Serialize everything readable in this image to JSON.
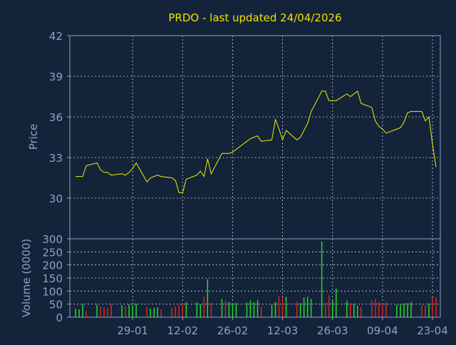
{
  "colors": {
    "background": "#13233a",
    "axis": "#8aa4c8",
    "grid": "#c8d4e6",
    "label": "#8aa4c8",
    "title": "#f0e000",
    "price_line": "#f0f000",
    "vol_up": "#22dd22",
    "vol_down": "#dd2222"
  },
  "chart_data": [
    {
      "type": "line",
      "title": "PRDO - last updated 24/04/2026",
      "ylabel": "Price",
      "ylim": [
        27,
        42
      ],
      "yticks": [
        42,
        39,
        36,
        33,
        30
      ],
      "xlim": [
        "2026-01-13",
        "2026-04-24"
      ],
      "xticks": [
        "29-01",
        "12-02",
        "26-02",
        "12-03",
        "26-03",
        "09-04",
        "23-04"
      ],
      "xtick_dates": [
        "2026-01-29",
        "2026-02-12",
        "2026-02-26",
        "2026-03-12",
        "2026-03-26",
        "2026-04-09",
        "2026-04-23"
      ],
      "grid": true,
      "series": [
        {
          "x": [
            "2026-01-13",
            "2026-01-14",
            "2026-01-15",
            "2026-01-16",
            "2026-01-19",
            "2026-01-20",
            "2026-01-21",
            "2026-01-22",
            "2026-01-23",
            "2026-01-26",
            "2026-01-27",
            "2026-01-28",
            "2026-01-29",
            "2026-01-30",
            "2026-02-02",
            "2026-02-03",
            "2026-02-04",
            "2026-02-05",
            "2026-02-06",
            "2026-02-09",
            "2026-02-10",
            "2026-02-11",
            "2026-02-12",
            "2026-02-13",
            "2026-02-16",
            "2026-02-17",
            "2026-02-18",
            "2026-02-19",
            "2026-02-20",
            "2026-02-23",
            "2026-02-24",
            "2026-02-25",
            "2026-02-26",
            "2026-02-27",
            "2026-03-02",
            "2026-03-03",
            "2026-03-04",
            "2026-03-05",
            "2026-03-06",
            "2026-03-09",
            "2026-03-10",
            "2026-03-11",
            "2026-03-12",
            "2026-03-13",
            "2026-03-16",
            "2026-03-17",
            "2026-03-18",
            "2026-03-19",
            "2026-03-20",
            "2026-03-23",
            "2026-03-24",
            "2026-03-25",
            "2026-03-26",
            "2026-03-27",
            "2026-03-30",
            "2026-03-31",
            "2026-04-01",
            "2026-04-02",
            "2026-04-03",
            "2026-04-06",
            "2026-04-07",
            "2026-04-08",
            "2026-04-09",
            "2026-04-10",
            "2026-04-13",
            "2026-04-14",
            "2026-04-15",
            "2026-04-16",
            "2026-04-17",
            "2026-04-20",
            "2026-04-21",
            "2026-04-22",
            "2026-04-23",
            "2026-04-24"
          ],
          "y": [
            31.6,
            31.6,
            31.6,
            32.4,
            32.6,
            32.1,
            31.9,
            31.9,
            31.7,
            31.8,
            31.7,
            31.9,
            32.2,
            32.6,
            31.2,
            31.5,
            31.6,
            31.7,
            31.6,
            31.5,
            31.3,
            30.4,
            30.4,
            31.4,
            31.7,
            32.0,
            31.6,
            32.9,
            31.8,
            33.3,
            33.3,
            33.3,
            33.4,
            33.6,
            34.2,
            34.4,
            34.5,
            34.6,
            34.2,
            34.3,
            35.8,
            35.1,
            34.3,
            35.0,
            34.3,
            34.5,
            35.0,
            35.5,
            36.4,
            37.9,
            37.9,
            37.2,
            37.2,
            37.2,
            37.7,
            37.5,
            37.7,
            37.9,
            37.0,
            36.7,
            35.7,
            35.3,
            35.1,
            34.8,
            35.1,
            35.2,
            35.6,
            36.3,
            36.4,
            36.4,
            35.7,
            36.0,
            34.0,
            32.3
          ]
        }
      ]
    },
    {
      "type": "bar",
      "ylabel": "Volume (0000)",
      "ylim": [
        0,
        300
      ],
      "yticks": [
        300,
        250,
        200,
        150,
        100,
        50,
        0
      ],
      "x": [
        "2026-01-13",
        "2026-01-14",
        "2026-01-15",
        "2026-01-16",
        "2026-01-19",
        "2026-01-20",
        "2026-01-21",
        "2026-01-22",
        "2026-01-23",
        "2026-01-26",
        "2026-01-27",
        "2026-01-28",
        "2026-01-29",
        "2026-01-30",
        "2026-02-02",
        "2026-02-03",
        "2026-02-04",
        "2026-02-05",
        "2026-02-06",
        "2026-02-09",
        "2026-02-10",
        "2026-02-11",
        "2026-02-12",
        "2026-02-13",
        "2026-02-16",
        "2026-02-17",
        "2026-02-18",
        "2026-02-19",
        "2026-02-20",
        "2026-02-23",
        "2026-02-24",
        "2026-02-25",
        "2026-02-26",
        "2026-02-27",
        "2026-03-02",
        "2026-03-03",
        "2026-03-04",
        "2026-03-05",
        "2026-03-06",
        "2026-03-09",
        "2026-03-10",
        "2026-03-11",
        "2026-03-12",
        "2026-03-13",
        "2026-03-16",
        "2026-03-17",
        "2026-03-18",
        "2026-03-19",
        "2026-03-20",
        "2026-03-23",
        "2026-03-24",
        "2026-03-25",
        "2026-03-26",
        "2026-03-27",
        "2026-03-30",
        "2026-03-31",
        "2026-04-01",
        "2026-04-02",
        "2026-04-03",
        "2026-04-06",
        "2026-04-07",
        "2026-04-08",
        "2026-04-09",
        "2026-04-10",
        "2026-04-13",
        "2026-04-14",
        "2026-04-15",
        "2026-04-16",
        "2026-04-17",
        "2026-04-20",
        "2026-04-21",
        "2026-04-22",
        "2026-04-23",
        "2026-04-24"
      ],
      "values": [
        33,
        30,
        50,
        24,
        48,
        40,
        38,
        36,
        52,
        46,
        42,
        50,
        46,
        52,
        40,
        34,
        36,
        38,
        30,
        36,
        42,
        48,
        54,
        58,
        56,
        50,
        80,
        145,
        54,
        70,
        62,
        58,
        52,
        55,
        56,
        64,
        58,
        66,
        40,
        48,
        58,
        80,
        76,
        78,
        60,
        54,
        76,
        78,
        70,
        290,
        56,
        84,
        64,
        110,
        62,
        54,
        52,
        44,
        40,
        66,
        70,
        58,
        52,
        60,
        48,
        50,
        52,
        54,
        58,
        48,
        46,
        52,
        76,
        76
      ],
      "direction": [
        "up",
        "up",
        "up",
        "down",
        "up",
        "down",
        "down",
        "down",
        "down",
        "up",
        "down",
        "up",
        "up",
        "up",
        "down",
        "up",
        "up",
        "up",
        "down",
        "down",
        "down",
        "down",
        "down",
        "up",
        "up",
        "up",
        "down",
        "up",
        "down",
        "up",
        "down",
        "up",
        "up",
        "up",
        "up",
        "up",
        "up",
        "up",
        "down",
        "up",
        "up",
        "down",
        "down",
        "up",
        "down",
        "up",
        "up",
        "up",
        "up",
        "up",
        "down",
        "down",
        "up",
        "up",
        "up",
        "down",
        "up",
        "up",
        "down",
        "down",
        "down",
        "down",
        "down",
        "down",
        "up",
        "up",
        "up",
        "up",
        "up",
        "down",
        "down",
        "up",
        "down",
        "down"
      ]
    }
  ]
}
